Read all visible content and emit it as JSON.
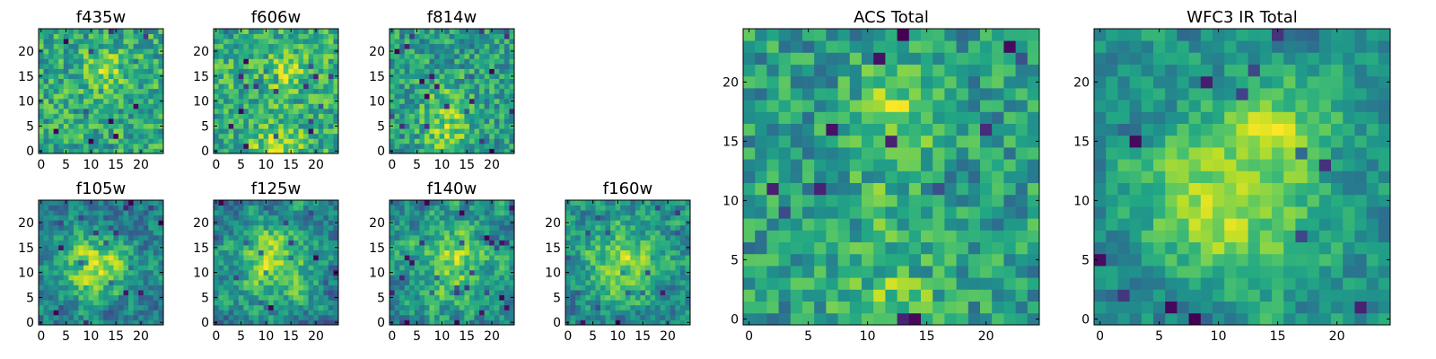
{
  "chart_data": [
    {
      "type": "heatmap",
      "title": "f435w",
      "xticks": [
        "0",
        "5",
        "10",
        "15",
        "20"
      ],
      "yticks": [
        "0",
        "5",
        "10",
        "15",
        "20"
      ],
      "xlim": [
        -0.5,
        24.5
      ],
      "ylim": [
        -0.5,
        24.5
      ],
      "grid_size": 25,
      "colormap": "viridis",
      "seed": 11,
      "smooth": 0,
      "noise": 0.65,
      "blobs": [
        [
          13,
          16,
          3,
          0.6
        ]
      ]
    },
    {
      "type": "heatmap",
      "title": "f606w",
      "xticks": [
        "0",
        "5",
        "10",
        "15",
        "20"
      ],
      "yticks": [
        "0",
        "5",
        "10",
        "15",
        "20"
      ],
      "xlim": [
        -0.5,
        24.5
      ],
      "ylim": [
        -0.5,
        24.5
      ],
      "grid_size": 25,
      "colormap": "viridis",
      "seed": 23,
      "smooth": 0,
      "noise": 0.6,
      "blobs": [
        [
          12,
          1,
          3,
          0.7
        ],
        [
          14,
          16,
          3,
          0.5
        ]
      ]
    },
    {
      "type": "heatmap",
      "title": "f814w",
      "xticks": [
        "0",
        "5",
        "10",
        "15",
        "20"
      ],
      "yticks": [
        "0",
        "5",
        "10",
        "15",
        "20"
      ],
      "xlim": [
        -0.5,
        24.5
      ],
      "ylim": [
        -0.5,
        24.5
      ],
      "grid_size": 25,
      "colormap": "viridis",
      "seed": 37,
      "smooth": 0,
      "noise": 0.6,
      "blobs": [
        [
          11,
          8,
          4,
          0.6
        ],
        [
          11,
          1,
          3,
          0.6
        ]
      ]
    },
    {
      "type": "heatmap",
      "title": "f105w",
      "xticks": [
        "0",
        "5",
        "10",
        "15",
        "20"
      ],
      "yticks": [
        "0",
        "5",
        "10",
        "15",
        "20"
      ],
      "xlim": [
        -0.5,
        24.5
      ],
      "ylim": [
        -0.5,
        24.5
      ],
      "grid_size": 25,
      "colormap": "viridis",
      "seed": 41,
      "smooth": 1,
      "noise": 0.55,
      "blobs": [
        [
          11,
          11,
          5,
          0.8
        ]
      ]
    },
    {
      "type": "heatmap",
      "title": "f125w",
      "xticks": [
        "0",
        "5",
        "10",
        "15",
        "20"
      ],
      "yticks": [
        "0",
        "5",
        "10",
        "15",
        "20"
      ],
      "xlim": [
        -0.5,
        24.5
      ],
      "ylim": [
        -0.5,
        24.5
      ],
      "grid_size": 25,
      "colormap": "viridis",
      "seed": 53,
      "smooth": 1,
      "noise": 0.55,
      "blobs": [
        [
          12,
          12,
          6,
          0.7
        ]
      ]
    },
    {
      "type": "heatmap",
      "title": "f140w",
      "xticks": [
        "0",
        "5",
        "10",
        "15",
        "20"
      ],
      "yticks": [
        "0",
        "5",
        "10",
        "15",
        "20"
      ],
      "xlim": [
        -0.5,
        24.5
      ],
      "ylim": [
        -0.5,
        24.5
      ],
      "grid_size": 25,
      "colormap": "viridis",
      "seed": 67,
      "smooth": 1,
      "noise": 0.6,
      "blobs": [
        [
          12,
          12,
          5,
          0.6
        ]
      ]
    },
    {
      "type": "heatmap",
      "title": "f160w",
      "xticks": [
        "0",
        "5",
        "10",
        "15",
        "20"
      ],
      "yticks": [
        "0",
        "5",
        "10",
        "15",
        "20"
      ],
      "xlim": [
        -0.5,
        24.5
      ],
      "ylim": [
        -0.5,
        24.5
      ],
      "grid_size": 25,
      "colormap": "viridis",
      "seed": 79,
      "smooth": 1,
      "noise": 0.6,
      "blobs": [
        [
          11,
          12,
          5,
          0.7
        ]
      ]
    },
    {
      "type": "heatmap",
      "title": "ACS Total",
      "xticks": [
        "0",
        "5",
        "10",
        "15",
        "20"
      ],
      "yticks": [
        "0",
        "5",
        "10",
        "15",
        "20"
      ],
      "xlim": [
        -0.5,
        24.5
      ],
      "ylim": [
        -0.5,
        24.5
      ],
      "grid_size": 25,
      "colormap": "viridis",
      "seed": 97,
      "smooth": 0,
      "noise": 0.55,
      "blobs": [
        [
          13,
          18,
          2.5,
          0.7
        ],
        [
          12,
          1,
          3,
          0.6
        ],
        [
          11,
          10,
          2,
          0.4
        ]
      ]
    },
    {
      "type": "heatmap",
      "title": "WFC3 IR Total",
      "xticks": [
        "0",
        "5",
        "10",
        "15",
        "20"
      ],
      "yticks": [
        "0",
        "5",
        "10",
        "15",
        "20"
      ],
      "xlim": [
        -0.5,
        24.5
      ],
      "ylim": [
        -0.5,
        24.5
      ],
      "grid_size": 25,
      "colormap": "viridis",
      "seed": 113,
      "smooth": 1,
      "noise": 0.45,
      "blobs": [
        [
          11,
          10,
          5,
          0.7
        ],
        [
          16,
          17,
          3,
          0.4
        ]
      ]
    }
  ]
}
